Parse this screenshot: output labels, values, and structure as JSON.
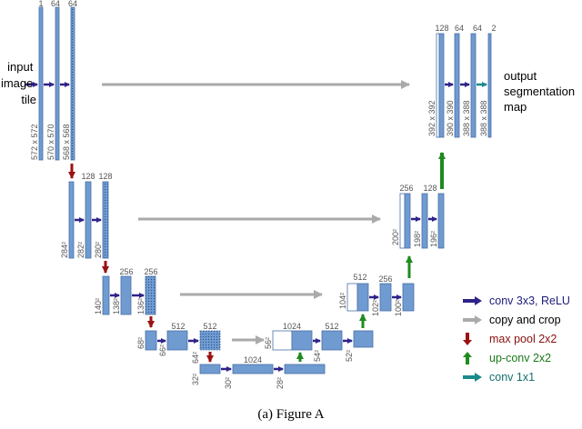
{
  "caption": "(a)  Figure A",
  "labels": {
    "input_tile": [
      "input",
      "image",
      "tile"
    ],
    "output_map": [
      "output",
      "segmentation",
      "map"
    ]
  },
  "channels": {
    "l1": [
      "1",
      "64",
      "64"
    ],
    "l2": [
      "128",
      "128"
    ],
    "l3": [
      "256",
      "256"
    ],
    "l4": [
      "512",
      "512"
    ],
    "bottom": [
      "1024"
    ],
    "r4": [
      "1024",
      "512"
    ],
    "r3": [
      "512",
      "256"
    ],
    "r2": [
      "256",
      "128"
    ],
    "r1": [
      "128",
      "64",
      "64",
      "2"
    ]
  },
  "sizes": {
    "l1": [
      "572 x 572",
      "570 x 570",
      "568 x 568"
    ],
    "l2": [
      "284²",
      "282²",
      "280²"
    ],
    "l3": [
      "140²",
      "138²",
      "136²"
    ],
    "l4": [
      "68²",
      "66²",
      "64²"
    ],
    "bottom": [
      "32²",
      "30²",
      "28²"
    ],
    "r4": [
      "56²",
      "54²",
      "52²"
    ],
    "r3": [
      "104²",
      "102²",
      "100²"
    ],
    "r2": [
      "200²",
      "198²",
      "196²"
    ],
    "r1": [
      "392 x 392",
      "390 x 390",
      "388 x 388",
      "388 x 388"
    ]
  },
  "legend": [
    {
      "label": "conv 3x3, ReLU",
      "icon": "arrow-right-icon",
      "color": "#2e2388",
      "text_color": "#1c1c7a"
    },
    {
      "label": "copy and crop",
      "icon": "arrow-right-icon",
      "color": "#aaaaaa",
      "text_color": "#000000"
    },
    {
      "label": "max pool 2x2",
      "icon": "arrow-down-icon",
      "color": "#9b1212",
      "text_color": "#8a1010"
    },
    {
      "label": "up-conv 2x2",
      "icon": "arrow-up-icon",
      "color": "#1f8a1f",
      "text_color": "#1a7a1a"
    },
    {
      "label": "conv 1x1",
      "icon": "arrow-right-icon",
      "color": "#1a8a8a",
      "text_color": "#156e6e"
    }
  ],
  "colors": {
    "block_fill": "#6f9bd1",
    "block_stroke": "#4a6fa5",
    "conv_arrow": "#2e2388",
    "copy_arrow": "#aaaaaa",
    "pool_arrow": "#9b1212",
    "upconv_arrow": "#1f8a1f",
    "conv1x1_arrow": "#1a8a8a"
  }
}
